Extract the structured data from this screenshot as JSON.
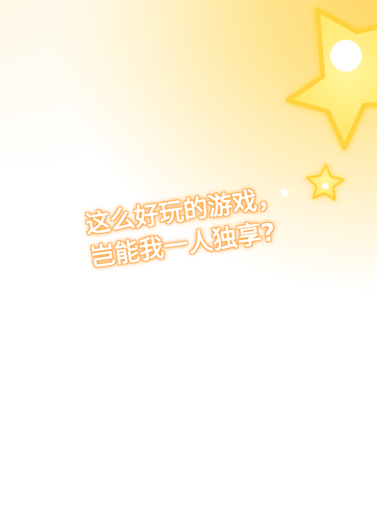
{
  "promo": {
    "line1": "这么好玩的游戏，",
    "line2": "岂能我一人独享?"
  },
  "colors": {
    "background_glow": "#ffd766",
    "star_fill": "#fff07a",
    "star_glow": "#ffd23f",
    "text_fill": "#ffffff",
    "text_glow": "#ff9c3a"
  },
  "icons": [
    "big-star-icon",
    "small-star-icon",
    "sparkle-icon"
  ]
}
